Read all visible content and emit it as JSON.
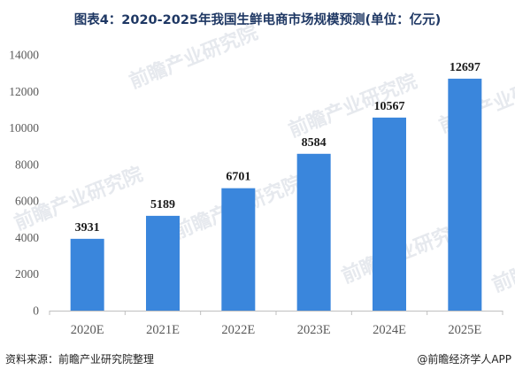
{
  "title": "图表4：2020-2025年我国生鲜电商市场规模预测(单位：亿元)",
  "chart_data": {
    "type": "bar",
    "title": "图表4：2020-2025年我国生鲜电商市场规模预测(单位：亿元)",
    "xlabel": "",
    "ylabel": "",
    "categories": [
      "2020E",
      "2021E",
      "2022E",
      "2023E",
      "2024E",
      "2025E"
    ],
    "values": [
      3931,
      5189,
      6701,
      8584,
      10567,
      12697
    ],
    "data_labels": [
      "3931",
      "5189",
      "6701",
      "8584",
      "10567",
      "12697"
    ],
    "ylim": [
      0,
      14000
    ],
    "yticks": [
      0,
      2000,
      4000,
      6000,
      8000,
      10000,
      12000,
      14000
    ],
    "grid": false,
    "legend": "none",
    "bar_color": "#3a86dc"
  },
  "footer": {
    "source_label": "资料来源：",
    "source": "前瞻产业研究院整理",
    "credit": "@前瞻经济学人APP"
  },
  "watermark": {
    "text": "前瞻产业研究院"
  },
  "colors": {
    "bar": "#3a86dc",
    "axis": "#bfbfbf",
    "tick_text": "#595959",
    "label_text": "#1a1a1a",
    "title_text": "#1f3864",
    "watermark": "#e6e9ee"
  }
}
